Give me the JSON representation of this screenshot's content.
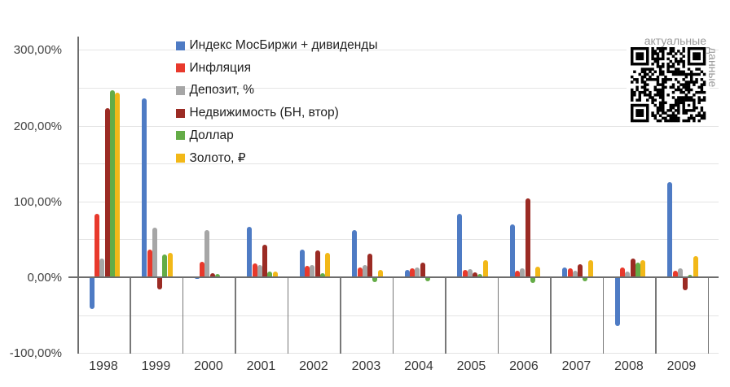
{
  "chart_data": {
    "type": "bar",
    "title": "",
    "categories": [
      "1998",
      "1999",
      "2000",
      "2001",
      "2002",
      "2003",
      "2004",
      "2005",
      "2006",
      "2007",
      "2008",
      "2009"
    ],
    "series": [
      {
        "name": "Индекс МосБиржи + дивиденды",
        "color": "#4e7bc4",
        "values": [
          -42,
          236,
          -2,
          66,
          37,
          62,
          9.5,
          84,
          70,
          13,
          -64.5,
          126
        ]
      },
      {
        "name": "Инфляция",
        "color": "#e8392c",
        "values": [
          84,
          36.5,
          20.5,
          18.7,
          15.5,
          12.5,
          11.7,
          9.7,
          9,
          12,
          13,
          9
        ]
      },
      {
        "name": "Депозит, %",
        "color": "#a6a6a6",
        "values": [
          24.5,
          65,
          62.5,
          16,
          16.5,
          16,
          13,
          10.6,
          11.4,
          9,
          8,
          12
        ]
      },
      {
        "name": "Недвижимость (БН, втор)",
        "color": "#9b2b24",
        "values": [
          223,
          -16.5,
          5.5,
          43,
          35,
          31,
          19,
          6,
          104,
          17.5,
          24.5,
          -17
        ]
      },
      {
        "name": "Доллар",
        "color": "#64ac47",
        "values": [
          247,
          30,
          4.2,
          7,
          5.5,
          -6.5,
          -5.8,
          3.9,
          -8,
          -5.5,
          19.5,
          3
        ]
      },
      {
        "name": "Золото, ₽",
        "color": "#f2b818",
        "values": [
          244,
          32,
          0,
          7,
          32,
          10,
          0,
          22,
          13.5,
          23,
          22.5,
          28
        ]
      }
    ],
    "y_axis": {
      "tick_labels": [
        "300,00%",
        "200,00%",
        "100,00%",
        "0,00%",
        "-100,00%"
      ],
      "tick_values": [
        300,
        200,
        100,
        0,
        -100
      ],
      "gridline_values": [
        300,
        250,
        200,
        150,
        100,
        50,
        -50,
        -100
      ],
      "range": [
        -100,
        300
      ],
      "grid": true
    },
    "legend_position": "top-left-inside",
    "xlabel": "",
    "ylabel": ""
  },
  "qr_overlay": {
    "caption_top": "актуальные",
    "caption_side": "данные"
  }
}
